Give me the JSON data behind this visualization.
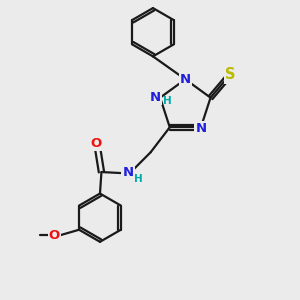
{
  "background_color": "#ebebeb",
  "bond_color": "#1a1a1a",
  "atom_colors": {
    "N": "#2020dd",
    "O": "#ee1111",
    "S": "#bbbb00",
    "C": "#1a1a1a",
    "H": "#00aaaa"
  },
  "figsize": [
    3.0,
    3.0
  ],
  "dpi": 100
}
